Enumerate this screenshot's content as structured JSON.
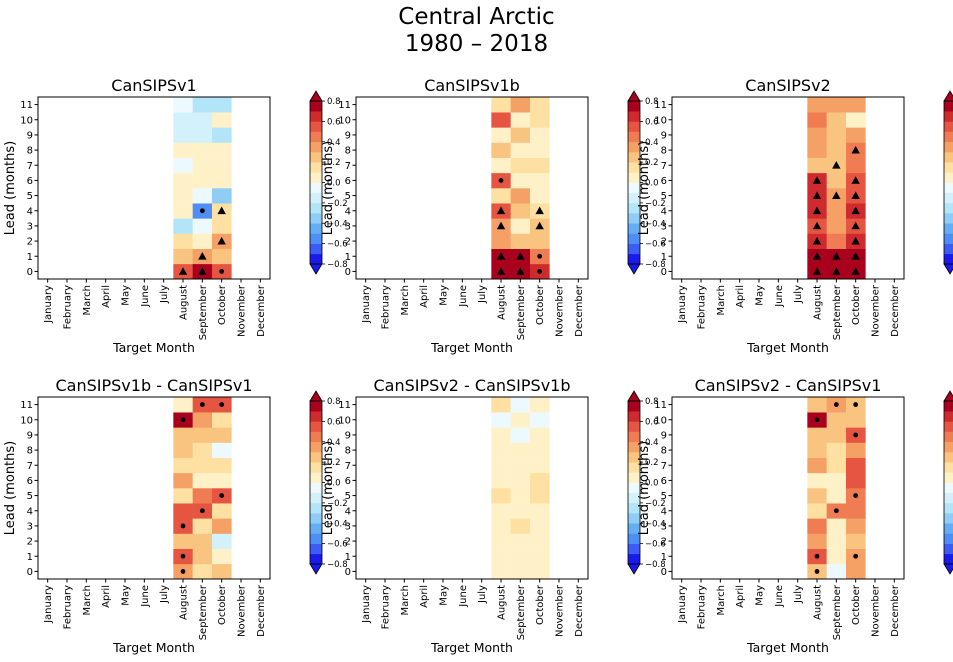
{
  "figure": {
    "title_line1": "Central Arctic",
    "title_line2": "1980 – 2018"
  },
  "colormap": {
    "name": "RdYlBu_r",
    "levels": [
      -0.8,
      -0.7,
      -0.6,
      -0.5,
      -0.4,
      -0.3,
      -0.2,
      -0.1,
      0.0,
      0.1,
      0.2,
      0.3,
      0.4,
      0.5,
      0.6,
      0.7,
      0.8
    ],
    "colors": [
      "#1a1aef",
      "#3d5cf5",
      "#4f8ef6",
      "#66aef4",
      "#8fcdf6",
      "#b3e5f8",
      "#d2f1fb",
      "#ecfaff",
      "#fffbe8",
      "#fff1c7",
      "#fde0a2",
      "#f9c380",
      "#f5a064",
      "#ef7c52",
      "#e55542",
      "#cf2b2f",
      "#a8001d"
    ],
    "extend": "both",
    "tick_labels": [
      "0.8",
      "0.6",
      "0.4",
      "0.2",
      "0.0",
      "−0.2",
      "−0.4",
      "−0.6",
      "−0.8"
    ],
    "tick_values": [
      0.8,
      0.6,
      0.4,
      0.2,
      0.0,
      -0.2,
      -0.4,
      -0.6,
      -0.8
    ]
  },
  "chart_data": [
    {
      "type": "heatmap",
      "title": "CanSIPSv1",
      "xlabel": "Target Month",
      "ylabel": "Lead (months)",
      "x_categories": [
        "January",
        "February",
        "March",
        "April",
        "May",
        "June",
        "July",
        "August",
        "September",
        "October",
        "November",
        "December"
      ],
      "y_ticks": [
        0,
        1,
        2,
        3,
        4,
        5,
        6,
        7,
        8,
        9,
        10,
        11
      ],
      "columns": [
        {
          "month": "August",
          "values": [
            0.5,
            0.25,
            0.15,
            -0.25,
            0.05,
            0.05,
            0.05,
            -0.05,
            0.05,
            -0.15,
            -0.2,
            -0.05
          ]
        },
        {
          "month": "September",
          "values": [
            0.95,
            0.3,
            0.05,
            -0.05,
            -0.55,
            -0.05,
            0.05,
            0.05,
            0.0,
            -0.15,
            -0.2,
            -0.25
          ]
        },
        {
          "month": "October",
          "values": [
            0.5,
            0.25,
            0.35,
            0.15,
            0.15,
            -0.35,
            0.0,
            0.05,
            0.05,
            -0.25,
            0.05,
            -0.3
          ]
        }
      ],
      "markers": [
        {
          "month": "August",
          "lead": 0,
          "symbol": "triangle"
        },
        {
          "month": "September",
          "lead": 0,
          "symbol": "triangle"
        },
        {
          "month": "September",
          "lead": 1,
          "symbol": "triangle"
        },
        {
          "month": "September",
          "lead": 4,
          "symbol": "dot"
        },
        {
          "month": "October",
          "lead": 0,
          "symbol": "dot"
        },
        {
          "month": "October",
          "lead": 2,
          "symbol": "triangle"
        },
        {
          "month": "October",
          "lead": 4,
          "symbol": "triangle"
        }
      ]
    },
    {
      "type": "heatmap",
      "title": "CanSIPSv1b",
      "xlabel": "Target Month",
      "ylabel": "Lead (months)",
      "x_categories": [
        "January",
        "February",
        "March",
        "April",
        "May",
        "June",
        "July",
        "August",
        "September",
        "October",
        "November",
        "December"
      ],
      "y_ticks": [
        0,
        1,
        2,
        3,
        4,
        5,
        6,
        7,
        8,
        9,
        10,
        11
      ],
      "columns": [
        {
          "month": "August",
          "values": [
            0.75,
            0.75,
            0.35,
            0.35,
            0.55,
            0.15,
            0.5,
            0.05,
            0.25,
            0.05,
            0.55,
            0.15
          ]
        },
        {
          "month": "September",
          "values": [
            0.75,
            0.7,
            0.2,
            0.05,
            0.2,
            0.3,
            0.05,
            0.1,
            0.05,
            0.2,
            0.05,
            0.3
          ]
        },
        {
          "month": "October",
          "values": [
            0.6,
            0.45,
            0.2,
            0.25,
            0.1,
            0.05,
            0.05,
            0.1,
            0.05,
            0.05,
            0.15,
            0.15
          ]
        }
      ],
      "markers": [
        {
          "month": "August",
          "lead": 0,
          "symbol": "triangle"
        },
        {
          "month": "August",
          "lead": 1,
          "symbol": "triangle"
        },
        {
          "month": "August",
          "lead": 3,
          "symbol": "triangle"
        },
        {
          "month": "August",
          "lead": 4,
          "symbol": "triangle"
        },
        {
          "month": "August",
          "lead": 6,
          "symbol": "dot"
        },
        {
          "month": "September",
          "lead": 0,
          "symbol": "triangle"
        },
        {
          "month": "September",
          "lead": 1,
          "symbol": "triangle"
        },
        {
          "month": "October",
          "lead": 0,
          "symbol": "dot"
        },
        {
          "month": "October",
          "lead": 1,
          "symbol": "dot"
        },
        {
          "month": "October",
          "lead": 3,
          "symbol": "triangle"
        },
        {
          "month": "October",
          "lead": 4,
          "symbol": "triangle"
        }
      ]
    },
    {
      "type": "heatmap",
      "title": "CanSIPSv2",
      "xlabel": "Target Month",
      "ylabel": "Lead (months)",
      "x_categories": [
        "January",
        "February",
        "March",
        "April",
        "May",
        "June",
        "July",
        "August",
        "September",
        "October",
        "November",
        "December"
      ],
      "y_ticks": [
        0,
        1,
        2,
        3,
        4,
        5,
        6,
        7,
        8,
        9,
        10,
        11
      ],
      "columns": [
        {
          "month": "August",
          "values": [
            0.75,
            0.75,
            0.65,
            0.55,
            0.65,
            0.65,
            0.65,
            0.25,
            0.35,
            0.35,
            0.45,
            0.3
          ]
        },
        {
          "month": "September",
          "values": [
            0.7,
            0.7,
            0.45,
            0.35,
            0.3,
            0.35,
            0.25,
            0.25,
            0.2,
            0.25,
            0.25,
            0.3
          ]
        },
        {
          "month": "October",
          "values": [
            0.75,
            0.7,
            0.65,
            0.55,
            0.6,
            0.55,
            0.5,
            0.45,
            0.45,
            0.35,
            0.05,
            0.3
          ]
        }
      ],
      "markers": [
        {
          "month": "August",
          "lead": 0,
          "symbol": "triangle"
        },
        {
          "month": "August",
          "lead": 1,
          "symbol": "triangle"
        },
        {
          "month": "August",
          "lead": 2,
          "symbol": "triangle"
        },
        {
          "month": "August",
          "lead": 3,
          "symbol": "triangle"
        },
        {
          "month": "August",
          "lead": 4,
          "symbol": "triangle"
        },
        {
          "month": "August",
          "lead": 5,
          "symbol": "triangle"
        },
        {
          "month": "August",
          "lead": 6,
          "symbol": "triangle"
        },
        {
          "month": "September",
          "lead": 0,
          "symbol": "triangle"
        },
        {
          "month": "September",
          "lead": 1,
          "symbol": "triangle"
        },
        {
          "month": "September",
          "lead": 5,
          "symbol": "triangle"
        },
        {
          "month": "September",
          "lead": 7,
          "symbol": "triangle"
        },
        {
          "month": "October",
          "lead": 0,
          "symbol": "triangle"
        },
        {
          "month": "October",
          "lead": 1,
          "symbol": "triangle"
        },
        {
          "month": "October",
          "lead": 2,
          "symbol": "triangle"
        },
        {
          "month": "October",
          "lead": 3,
          "symbol": "triangle"
        },
        {
          "month": "October",
          "lead": 4,
          "symbol": "triangle"
        },
        {
          "month": "October",
          "lead": 5,
          "symbol": "triangle"
        },
        {
          "month": "October",
          "lead": 6,
          "symbol": "triangle"
        },
        {
          "month": "October",
          "lead": 8,
          "symbol": "triangle"
        }
      ]
    },
    {
      "type": "heatmap",
      "title": "CanSIPSv1b - CanSIPSv1",
      "xlabel": "Target Month",
      "ylabel": "Lead (months)",
      "x_categories": [
        "January",
        "February",
        "March",
        "April",
        "May",
        "June",
        "July",
        "August",
        "September",
        "October",
        "November",
        "December"
      ],
      "y_ticks": [
        0,
        1,
        2,
        3,
        4,
        5,
        6,
        7,
        8,
        9,
        10,
        11
      ],
      "columns": [
        {
          "month": "August",
          "values": [
            0.35,
            0.55,
            0.2,
            0.55,
            0.55,
            0.15,
            0.35,
            0.1,
            0.25,
            0.25,
            0.75,
            0.05
          ]
        },
        {
          "month": "September",
          "values": [
            0.15,
            0.25,
            0.2,
            0.15,
            0.5,
            0.45,
            0.05,
            0.1,
            0.15,
            0.2,
            0.3,
            0.5
          ]
        },
        {
          "month": "October",
          "values": [
            0.2,
            0.05,
            -0.2,
            0.35,
            0.1,
            0.5,
            0.05,
            0.15,
            -0.05,
            0.25,
            0.15,
            0.5
          ]
        }
      ],
      "markers": [
        {
          "month": "August",
          "lead": 0,
          "symbol": "dot"
        },
        {
          "month": "August",
          "lead": 1,
          "symbol": "dot"
        },
        {
          "month": "August",
          "lead": 3,
          "symbol": "dot"
        },
        {
          "month": "August",
          "lead": 10,
          "symbol": "dot"
        },
        {
          "month": "September",
          "lead": 4,
          "symbol": "dot"
        },
        {
          "month": "September",
          "lead": 11,
          "symbol": "dot"
        },
        {
          "month": "October",
          "lead": 5,
          "symbol": "dot"
        },
        {
          "month": "October",
          "lead": 11,
          "symbol": "dot"
        }
      ]
    },
    {
      "type": "heatmap",
      "title": "CanSIPSv2 - CanSIPSv1b",
      "xlabel": "Target Month",
      "ylabel": "Lead (months)",
      "x_categories": [
        "January",
        "February",
        "March",
        "April",
        "May",
        "June",
        "July",
        "August",
        "September",
        "October",
        "November",
        "December"
      ],
      "y_ticks": [
        0,
        1,
        2,
        3,
        4,
        5,
        6,
        7,
        8,
        9,
        10,
        11
      ],
      "columns": [
        {
          "month": "August",
          "values": [
            0.0,
            0.0,
            0.05,
            0.05,
            0.05,
            0.15,
            0.05,
            0.05,
            0.05,
            0.0,
            -0.05,
            0.15
          ]
        },
        {
          "month": "September",
          "values": [
            0.0,
            0.0,
            0.05,
            0.15,
            0.05,
            0.05,
            0.05,
            0.05,
            0.0,
            -0.05,
            0.05,
            -0.05
          ]
        },
        {
          "month": "October",
          "values": [
            0.05,
            0.05,
            0.05,
            0.05,
            0.05,
            0.15,
            0.15,
            0.05,
            0.05,
            0.05,
            -0.05,
            0.0
          ]
        }
      ],
      "markers": []
    },
    {
      "type": "heatmap",
      "title": "CanSIPSv2 - CanSIPSv1",
      "xlabel": "Target Month",
      "ylabel": "Lead (months)",
      "x_categories": [
        "January",
        "February",
        "March",
        "April",
        "May",
        "June",
        "July",
        "August",
        "September",
        "October",
        "November",
        "December"
      ],
      "y_ticks": [
        0,
        1,
        2,
        3,
        4,
        5,
        6,
        7,
        8,
        9,
        10,
        11
      ],
      "columns": [
        {
          "month": "August",
          "values": [
            0.25,
            0.55,
            0.3,
            0.45,
            0.15,
            0.25,
            0.05,
            0.35,
            0.25,
            0.25,
            0.75,
            0.25
          ]
        },
        {
          "month": "September",
          "values": [
            -0.1,
            0.05,
            0.05,
            0.05,
            0.45,
            0.05,
            0.05,
            0.15,
            0.15,
            0.25,
            0.25,
            0.35
          ]
        },
        {
          "month": "October",
          "values": [
            0.35,
            0.35,
            0.25,
            0.35,
            0.45,
            0.45,
            0.55,
            0.55,
            0.35,
            0.55,
            0.25,
            0.25
          ]
        }
      ],
      "markers": [
        {
          "month": "August",
          "lead": 0,
          "symbol": "dot"
        },
        {
          "month": "August",
          "lead": 1,
          "symbol": "dot"
        },
        {
          "month": "August",
          "lead": 10,
          "symbol": "dot"
        },
        {
          "month": "September",
          "lead": 4,
          "symbol": "dot"
        },
        {
          "month": "September",
          "lead": 11,
          "symbol": "dot"
        },
        {
          "month": "October",
          "lead": 1,
          "symbol": "dot"
        },
        {
          "month": "October",
          "lead": 5,
          "symbol": "dot"
        },
        {
          "month": "October",
          "lead": 9,
          "symbol": "dot"
        },
        {
          "month": "October",
          "lead": 11,
          "symbol": "dot"
        }
      ]
    }
  ]
}
